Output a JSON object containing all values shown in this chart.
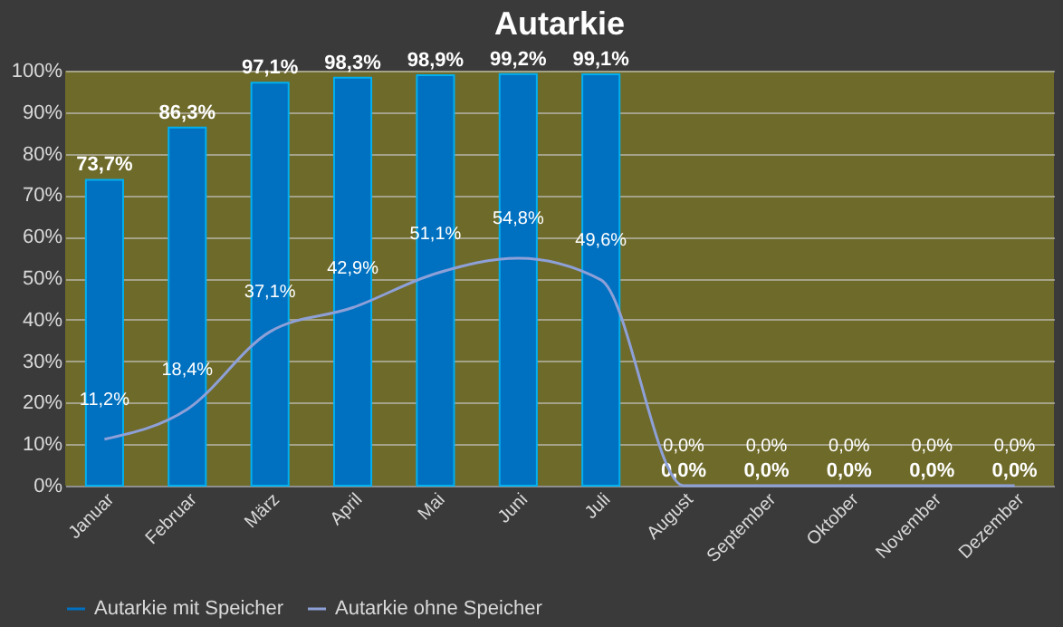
{
  "chart_data": {
    "type": "bar",
    "title": "Autarkie",
    "categories": [
      "Januar",
      "Februar",
      "März",
      "April",
      "Mai",
      "Juni",
      "Juli",
      "August",
      "September",
      "Oktober",
      "November",
      "Dezember"
    ],
    "series": [
      {
        "name": "Autarkie mit Speicher",
        "color": "#0070c0",
        "values": [
          73.7,
          86.3,
          97.1,
          98.3,
          98.9,
          99.2,
          99.1,
          0,
          0,
          0,
          0,
          0
        ],
        "value_labels": [
          "73,7%",
          "86,3%",
          "97,1%",
          "98,3%",
          "98,9%",
          "99,2%",
          "99,1%",
          "0,0%",
          "0,0%",
          "0,0%",
          "0,0%",
          "0,0%"
        ]
      },
      {
        "name": "Autarkie ohne Speicher",
        "type": "line",
        "color": "#8ea0d8",
        "values": [
          11.2,
          18.4,
          37.1,
          42.9,
          51.1,
          54.8,
          49.6,
          0,
          0,
          0,
          0,
          0
        ],
        "value_labels": [
          "11,2%",
          "18,4%",
          "37,1%",
          "42,9%",
          "51,1%",
          "54,8%",
          "49,6%",
          "0,0%",
          "0,0%",
          "0,0%",
          "0,0%",
          "0,0%"
        ]
      }
    ],
    "ylim": [
      0,
      100
    ],
    "yticks": [
      {
        "value": 0,
        "label": "0%"
      },
      {
        "value": 10,
        "label": "10%"
      },
      {
        "value": 20,
        "label": "20%"
      },
      {
        "value": 30,
        "label": "30%"
      },
      {
        "value": 40,
        "label": "40%"
      },
      {
        "value": 50,
        "label": "50%"
      },
      {
        "value": 60,
        "label": "60%"
      },
      {
        "value": 70,
        "label": "70%"
      },
      {
        "value": 80,
        "label": "80%"
      },
      {
        "value": 90,
        "label": "90%"
      },
      {
        "value": 100,
        "label": "100%"
      }
    ],
    "grid": "y",
    "legend": "bottom",
    "line_style": "solid",
    "marker": "none"
  }
}
